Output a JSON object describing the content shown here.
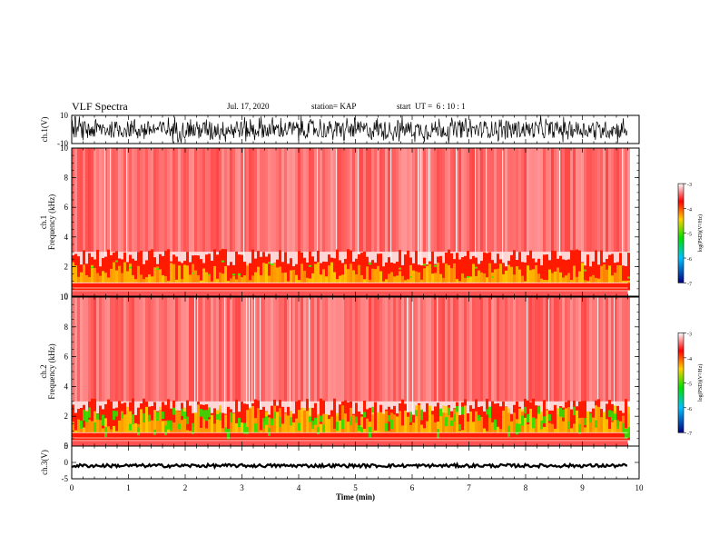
{
  "header": {
    "title": "VLF Spectra",
    "date": "Jul. 17, 2020",
    "station": "station= KAP",
    "start_ut": "start  UT =  6 : 10 : 1"
  },
  "chart_data": [
    {
      "type": "line",
      "panel": "ch1-waveform",
      "ylabel": "ch.1(V)",
      "ylim": [
        -10,
        10
      ],
      "yticks": [
        "10",
        "-10"
      ],
      "xlim": [
        0,
        10
      ],
      "series_color": "#000000",
      "note_values": "dense waveform spanning approx -10 to 10 V"
    },
    {
      "type": "heatmap",
      "panel": "ch1-spectrogram",
      "ylabel": "ch.1",
      "ylabel2": "Frequency (kHz)",
      "ylim": [
        0,
        10
      ],
      "yticks": [
        "0",
        "2",
        "4",
        "6",
        "8",
        "10"
      ],
      "xlim": [
        0,
        10
      ],
      "colorbar": {
        "label": "log(PSD)(V²/Hz)",
        "range": [
          -7,
          -3
        ],
        "ticks": [
          "-3",
          "-4",
          "-5",
          "-6",
          "-7"
        ]
      }
    },
    {
      "type": "heatmap",
      "panel": "ch2-spectrogram",
      "ylabel": "ch.2",
      "ylabel2": "Frequency (kHz)",
      "ylim": [
        0,
        10
      ],
      "yticks": [
        "0",
        "2",
        "4",
        "6",
        "8",
        "10"
      ],
      "xlim": [
        0,
        10
      ],
      "colorbar": {
        "label": "log(PSD)(V²/Hz)",
        "range": [
          -7,
          -3
        ],
        "ticks": [
          "-3",
          "-4",
          "-5",
          "-6",
          "-7"
        ]
      }
    },
    {
      "type": "line",
      "panel": "ch3-waveform",
      "ylabel": "ch.3(V)",
      "ylim": [
        -5,
        5
      ],
      "yticks": [
        "5",
        "0",
        "-5"
      ],
      "xlim": [
        0,
        10
      ],
      "series_color": "#000000",
      "note_values": "near-constant trace around -1 V"
    }
  ],
  "xaxis": {
    "label": "Time (min)",
    "ticks": [
      "0",
      "1",
      "2",
      "3",
      "4",
      "5",
      "6",
      "7",
      "8",
      "9",
      "10"
    ],
    "values": [
      0,
      1,
      2,
      3,
      4,
      5,
      6,
      7,
      8,
      9,
      10
    ]
  },
  "colors": {
    "background_hot": "#ff0000",
    "band_mid": "#ffd000",
    "band_low": "#00e000"
  }
}
